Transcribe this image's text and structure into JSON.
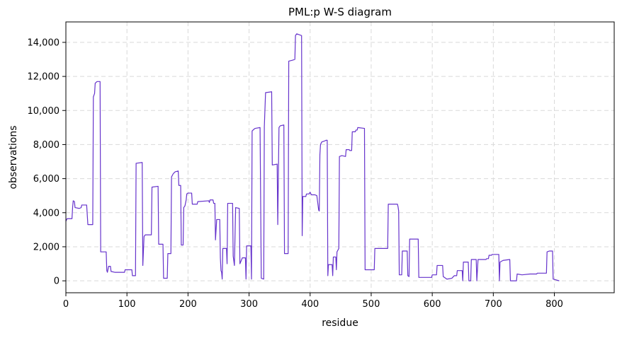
{
  "chart_data": {
    "type": "line",
    "title": "PML:p W-S diagram",
    "xlabel": "residue",
    "ylabel": "observations",
    "xlim": [
      0,
      898
    ],
    "ylim": [
      -700,
      15200
    ],
    "xticks": [
      0,
      100,
      200,
      300,
      400,
      500,
      600,
      700,
      800
    ],
    "yticks": [
      0,
      2000,
      4000,
      6000,
      8000,
      10000,
      12000,
      14000
    ],
    "ytick_labels": [
      "0",
      "2,000",
      "4,000",
      "6,000",
      "8,000",
      "10,000",
      "12,000",
      "14,000"
    ],
    "grid": true,
    "line_color": "#6633cc",
    "series": [
      {
        "points": [
          [
            0,
            3500
          ],
          [
            2,
            3650
          ],
          [
            10,
            3650
          ],
          [
            11,
            4300
          ],
          [
            12,
            4700
          ],
          [
            14,
            4650
          ],
          [
            15,
            4300
          ],
          [
            22,
            4250
          ],
          [
            25,
            4300
          ],
          [
            26,
            4450
          ],
          [
            34,
            4450
          ],
          [
            36,
            3300
          ],
          [
            44,
            3300
          ],
          [
            45,
            10800
          ],
          [
            47,
            11000
          ],
          [
            48,
            11600
          ],
          [
            51,
            11700
          ],
          [
            56,
            11700
          ],
          [
            57,
            1700
          ],
          [
            66,
            1700
          ],
          [
            67,
            600
          ],
          [
            68,
            500
          ],
          [
            70,
            850
          ],
          [
            73,
            850
          ],
          [
            74,
            550
          ],
          [
            80,
            500
          ],
          [
            96,
            500
          ],
          [
            97,
            650
          ],
          [
            108,
            650
          ],
          [
            109,
            300
          ],
          [
            114,
            300
          ],
          [
            115,
            6900
          ],
          [
            125,
            6950
          ],
          [
            126,
            900
          ],
          [
            128,
            2600
          ],
          [
            130,
            2700
          ],
          [
            140,
            2700
          ],
          [
            141,
            5500
          ],
          [
            151,
            5550
          ],
          [
            152,
            2150
          ],
          [
            159,
            2150
          ],
          [
            160,
            150
          ],
          [
            166,
            150
          ],
          [
            167,
            1600
          ],
          [
            172,
            1600
          ],
          [
            173,
            6100
          ],
          [
            176,
            6300
          ],
          [
            179,
            6400
          ],
          [
            184,
            6450
          ],
          [
            185,
            5600
          ],
          [
            188,
            5600
          ],
          [
            189,
            2100
          ],
          [
            192,
            2100
          ],
          [
            193,
            4300
          ],
          [
            195,
            4400
          ],
          [
            197,
            4750
          ],
          [
            198,
            5100
          ],
          [
            200,
            5150
          ],
          [
            206,
            5150
          ],
          [
            207,
            4500
          ],
          [
            215,
            4500
          ],
          [
            216,
            4650
          ],
          [
            234,
            4700
          ],
          [
            235,
            4600
          ],
          [
            236,
            4750
          ],
          [
            241,
            4750
          ],
          [
            242,
            4550
          ],
          [
            244,
            4550
          ],
          [
            245,
            2400
          ],
          [
            247,
            3600
          ],
          [
            252,
            3600
          ],
          [
            253,
            1350
          ],
          [
            254,
            600
          ],
          [
            255,
            500
          ],
          [
            256,
            100
          ],
          [
            257,
            1900
          ],
          [
            263,
            1900
          ],
          [
            264,
            1000
          ],
          [
            265,
            4550
          ],
          [
            273,
            4550
          ],
          [
            274,
            1450
          ],
          [
            276,
            900
          ],
          [
            278,
            4300
          ],
          [
            284,
            4250
          ],
          [
            285,
            1000
          ],
          [
            289,
            1350
          ],
          [
            294,
            1350
          ],
          [
            295,
            100
          ],
          [
            296,
            2050
          ],
          [
            303,
            2050
          ],
          [
            304,
            100
          ],
          [
            305,
            8800
          ],
          [
            308,
            8900
          ],
          [
            310,
            8950
          ],
          [
            318,
            9000
          ],
          [
            320,
            150
          ],
          [
            324,
            100
          ],
          [
            325,
            9050
          ],
          [
            327,
            11050
          ],
          [
            337,
            11100
          ],
          [
            338,
            6800
          ],
          [
            346,
            6850
          ],
          [
            347,
            3300
          ],
          [
            349,
            9000
          ],
          [
            351,
            9100
          ],
          [
            357,
            9150
          ],
          [
            358,
            1600
          ],
          [
            364,
            1600
          ],
          [
            365,
            12900
          ],
          [
            371,
            12950
          ],
          [
            375,
            13000
          ],
          [
            376,
            14400
          ],
          [
            378,
            14500
          ],
          [
            386,
            14400
          ],
          [
            387,
            2650
          ],
          [
            388,
            4950
          ],
          [
            393,
            4950
          ],
          [
            394,
            5100
          ],
          [
            398,
            5100
          ],
          [
            400,
            5200
          ],
          [
            402,
            5050
          ],
          [
            408,
            5050
          ],
          [
            411,
            5000
          ],
          [
            414,
            4150
          ],
          [
            415,
            4100
          ],
          [
            416,
            7400
          ],
          [
            417,
            8000
          ],
          [
            419,
            8150
          ],
          [
            423,
            8200
          ],
          [
            426,
            8250
          ],
          [
            428,
            8250
          ],
          [
            429,
            300
          ],
          [
            430,
            950
          ],
          [
            436,
            950
          ],
          [
            437,
            300
          ],
          [
            438,
            1400
          ],
          [
            442,
            1400
          ],
          [
            443,
            650
          ],
          [
            444,
            1700
          ],
          [
            447,
            1900
          ],
          [
            448,
            7300
          ],
          [
            452,
            7350
          ],
          [
            458,
            7300
          ],
          [
            459,
            7700
          ],
          [
            464,
            7700
          ],
          [
            465,
            7650
          ],
          [
            468,
            7650
          ],
          [
            469,
            8750
          ],
          [
            474,
            8750
          ],
          [
            475,
            8850
          ],
          [
            477,
            8850
          ],
          [
            478,
            9000
          ],
          [
            489,
            8950
          ],
          [
            490,
            650
          ],
          [
            505,
            650
          ],
          [
            506,
            1900
          ],
          [
            527,
            1900
          ],
          [
            528,
            4500
          ],
          [
            543,
            4500
          ],
          [
            544,
            4350
          ],
          [
            545,
            4100
          ],
          [
            546,
            350
          ],
          [
            550,
            350
          ],
          [
            551,
            1750
          ],
          [
            559,
            1750
          ],
          [
            560,
            300
          ],
          [
            562,
            250
          ],
          [
            563,
            2450
          ],
          [
            577,
            2450
          ],
          [
            578,
            200
          ],
          [
            599,
            200
          ],
          [
            600,
            350
          ],
          [
            607,
            350
          ],
          [
            608,
            900
          ],
          [
            617,
            900
          ],
          [
            618,
            250
          ],
          [
            624,
            100
          ],
          [
            632,
            150
          ],
          [
            636,
            300
          ],
          [
            640,
            300
          ],
          [
            641,
            600
          ],
          [
            649,
            600
          ],
          [
            650,
            0
          ],
          [
            651,
            1100
          ],
          [
            659,
            1100
          ],
          [
            660,
            0
          ],
          [
            663,
            0
          ],
          [
            664,
            1250
          ],
          [
            672,
            1250
          ],
          [
            673,
            0
          ],
          [
            675,
            1250
          ],
          [
            688,
            1250
          ],
          [
            689,
            1300
          ],
          [
            692,
            1300
          ],
          [
            693,
            1500
          ],
          [
            697,
            1500
          ],
          [
            698,
            1550
          ],
          [
            709,
            1550
          ],
          [
            710,
            0
          ],
          [
            711,
            1100
          ],
          [
            716,
            1200
          ],
          [
            727,
            1250
          ],
          [
            728,
            0
          ],
          [
            733,
            0
          ],
          [
            734,
            0
          ],
          [
            738,
            0
          ],
          [
            739,
            400
          ],
          [
            747,
            350
          ],
          [
            760,
            400
          ],
          [
            771,
            400
          ],
          [
            772,
            450
          ],
          [
            787,
            450
          ],
          [
            788,
            1700
          ],
          [
            792,
            1750
          ],
          [
            797,
            1750
          ],
          [
            798,
            100
          ],
          [
            808,
            0
          ]
        ]
      }
    ]
  }
}
